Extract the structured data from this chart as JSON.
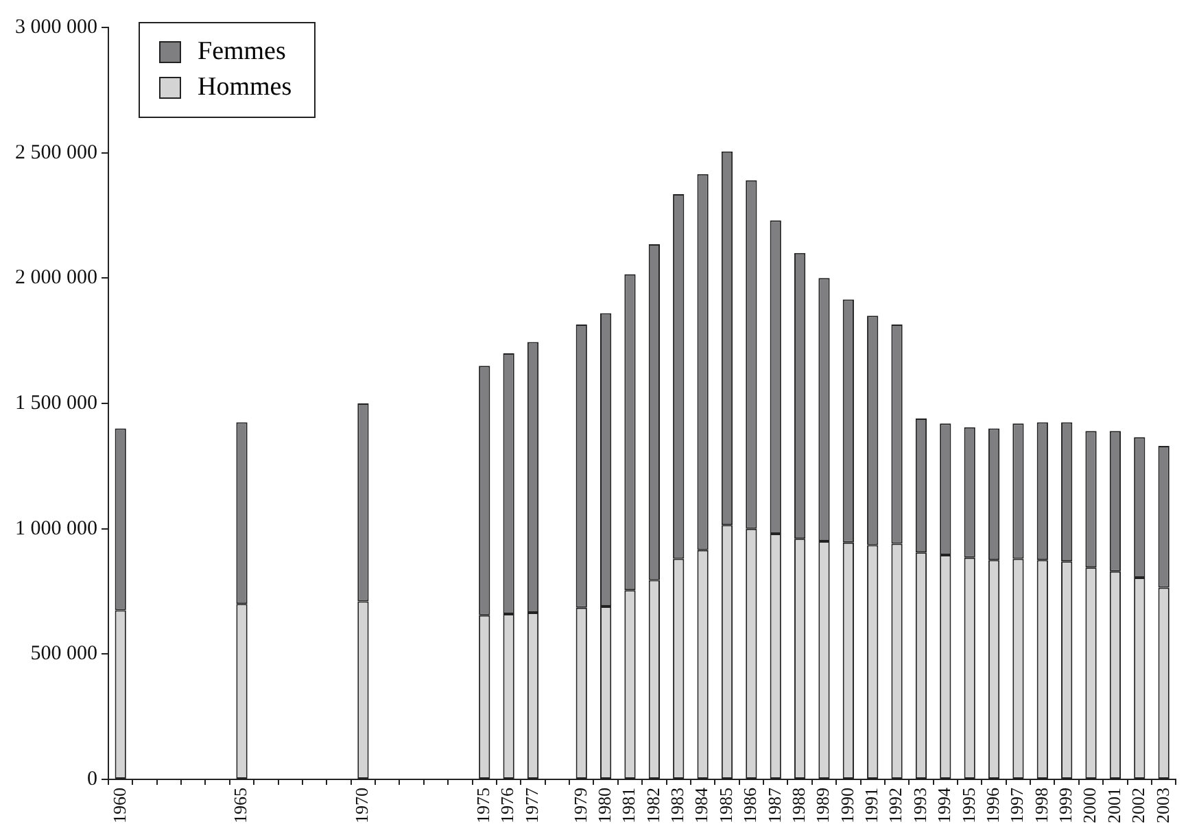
{
  "chart_data": {
    "type": "bar",
    "stacked": true,
    "categories": [
      "1960",
      null,
      null,
      null,
      null,
      "1965",
      null,
      null,
      null,
      null,
      "1970",
      null,
      null,
      null,
      null,
      "1975",
      "1976",
      "1977",
      null,
      "1979",
      "1980",
      "1981",
      "1982",
      "1983",
      "1984",
      "1985",
      "1986",
      "1987",
      "1988",
      "1989",
      "1990",
      "1991",
      "1992",
      "1993",
      "1994",
      "1995",
      "1996",
      "1997",
      "1998",
      "1999",
      "2000",
      "2001",
      "2002",
      "2003"
    ],
    "series": [
      {
        "name": "Hommes",
        "color": "#d4d4d4",
        "values": [
          675000,
          null,
          null,
          null,
          null,
          700000,
          null,
          null,
          null,
          null,
          710000,
          null,
          null,
          null,
          null,
          655000,
          660000,
          665000,
          null,
          685000,
          690000,
          755000,
          795000,
          880000,
          915000,
          1015000,
          1000000,
          980000,
          960000,
          950000,
          945000,
          935000,
          940000,
          905000,
          895000,
          885000,
          875000,
          880000,
          875000,
          870000,
          845000,
          830000,
          805000,
          765000
        ]
      },
      {
        "name": "Femmes",
        "color": "#7f7f82",
        "values": [
          725000,
          null,
          null,
          null,
          null,
          725000,
          null,
          null,
          null,
          null,
          790000,
          null,
          null,
          null,
          null,
          995000,
          1040000,
          1080000,
          null,
          1130000,
          1170000,
          1260000,
          1340000,
          1455000,
          1500000,
          1490000,
          1390000,
          1250000,
          1140000,
          1050000,
          970000,
          915000,
          875000,
          535000,
          525000,
          520000,
          525000,
          540000,
          550000,
          555000,
          545000,
          560000,
          560000,
          565000
        ]
      }
    ],
    "ylim": [
      0,
      3000000
    ],
    "yticks": [
      0,
      {
        "value": 500000,
        "label": "500 000"
      },
      {
        "value": 1000000,
        "label": "1 000 000"
      },
      {
        "value": 1500000,
        "label": "1 500 000"
      },
      {
        "value": 2000000,
        "label": "2 000 000"
      },
      {
        "value": 2500000,
        "label": "2 500 000"
      },
      {
        "value": 3000000,
        "label": "3 000 000"
      }
    ],
    "grid": false,
    "legend": "top left"
  }
}
